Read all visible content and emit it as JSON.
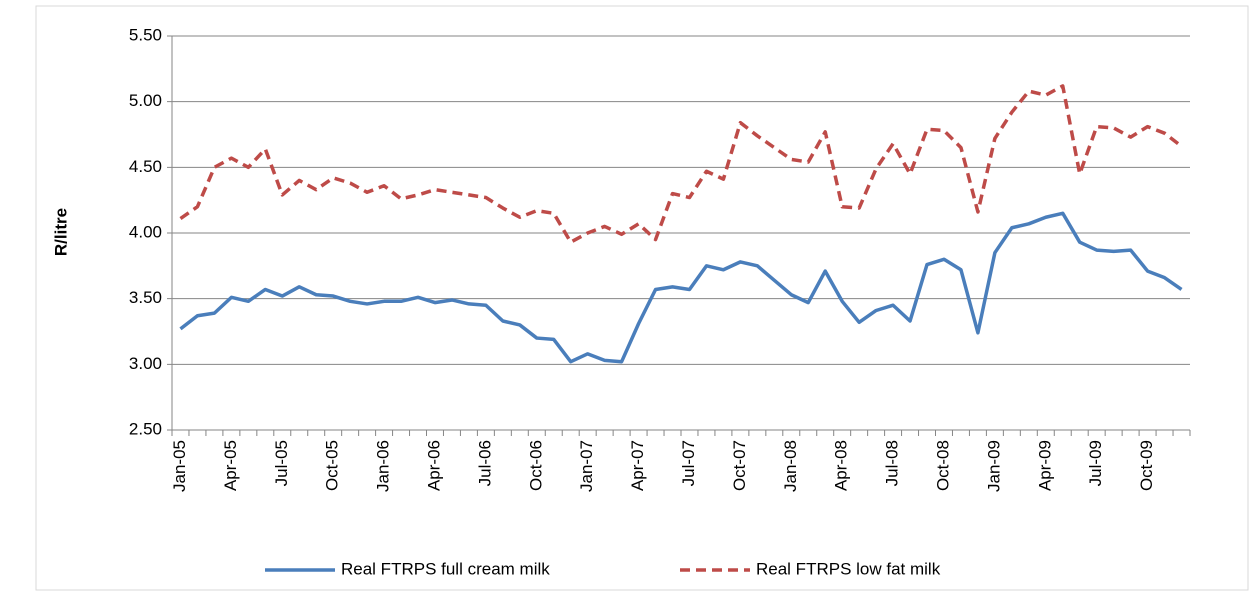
{
  "chart_data": {
    "type": "line",
    "y_label": "R/litre",
    "categories": [
      "Jan-05",
      null,
      null,
      "Apr-05",
      null,
      null,
      "Jul-05",
      null,
      null,
      "Oct-05",
      null,
      null,
      "Jan-06",
      null,
      null,
      "Apr-06",
      null,
      null,
      "Jul-06",
      null,
      null,
      "Oct-06",
      null,
      null,
      "Jan-07",
      null,
      null,
      "Apr-07",
      null,
      null,
      "Jul-07",
      null,
      null,
      "Oct-07",
      null,
      null,
      "Jan-08",
      null,
      null,
      "Apr-08",
      null,
      null,
      "Jul-08",
      null,
      null,
      "Oct-08",
      null,
      null,
      "Jan-09",
      null,
      null,
      "Apr-09",
      null,
      null,
      "Jul-09",
      null,
      null,
      "Oct-09",
      null,
      null
    ],
    "series": [
      {
        "name": "Real FTRPS full cream milk",
        "color": "#4a7ebb",
        "dash": "solid",
        "values": [
          3.27,
          3.37,
          3.39,
          3.51,
          3.48,
          3.57,
          3.52,
          3.59,
          3.53,
          3.52,
          3.48,
          3.46,
          3.48,
          3.48,
          3.51,
          3.47,
          3.49,
          3.46,
          3.45,
          3.33,
          3.3,
          3.2,
          3.19,
          3.02,
          3.08,
          3.03,
          3.02,
          3.31,
          3.57,
          3.59,
          3.57,
          3.75,
          3.72,
          3.78,
          3.75,
          3.64,
          3.53,
          3.47,
          3.71,
          3.48,
          3.32,
          3.41,
          3.45,
          3.33,
          3.76,
          3.8,
          3.72,
          3.24,
          3.85,
          4.04,
          4.07,
          4.12,
          4.15,
          3.93,
          3.87,
          3.86,
          3.87,
          3.71,
          3.66,
          3.57
        ]
      },
      {
        "name": "Real FTRPS low fat milk",
        "color": "#be4b48",
        "dash": "dashed",
        "values": [
          4.11,
          4.2,
          4.5,
          4.57,
          4.5,
          4.64,
          4.29,
          4.4,
          4.33,
          4.42,
          4.38,
          4.31,
          4.36,
          4.26,
          4.29,
          4.33,
          4.31,
          4.29,
          4.27,
          4.19,
          4.12,
          4.17,
          4.15,
          3.93,
          4.0,
          4.05,
          3.99,
          4.07,
          3.95,
          4.3,
          4.27,
          4.47,
          4.41,
          4.84,
          4.74,
          4.65,
          4.56,
          4.54,
          4.77,
          4.2,
          4.19,
          4.49,
          4.68,
          4.45,
          4.79,
          4.78,
          4.65,
          4.16,
          4.72,
          4.92,
          5.08,
          5.05,
          5.12,
          4.45,
          4.81,
          4.8,
          4.73,
          4.81,
          4.76,
          4.66
        ]
      }
    ],
    "ylim": [
      2.5,
      5.5
    ],
    "yticks": [
      {
        "value": 2.5,
        "label": "2.50"
      },
      {
        "value": 3,
        "label": "3.00"
      },
      {
        "value": 3.5,
        "label": "3.50"
      },
      {
        "value": 4,
        "label": "4.00"
      },
      {
        "value": 4.5,
        "label": "4.50"
      },
      {
        "value": 5,
        "label": "5.00"
      },
      {
        "value": 5.5,
        "label": "5.50"
      }
    ],
    "grid": true,
    "legend": "bottom"
  }
}
